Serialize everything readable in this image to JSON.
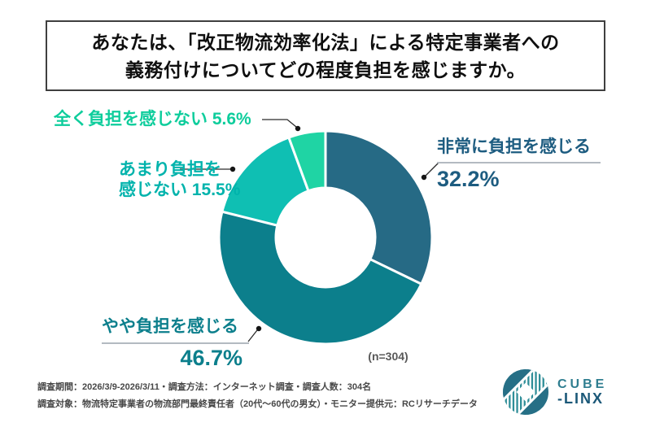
{
  "title": {
    "line1": "あなたは、「改正物流効率化法」による特定事業者への",
    "line2": "義務付けについてどの程度負担を感じますか。"
  },
  "chart_data": {
    "type": "pie",
    "variant": "donut",
    "title": "あなたは、「改正物流効率化法」による特定事業者への義務付けについてどの程度負担を感じますか。",
    "start_angle_deg": 0,
    "direction": "clockwise",
    "sample_label": "(n=304)",
    "sample_size": 304,
    "separator_color": "#ffffff",
    "segments": [
      {
        "label": "非常に負担を感じる",
        "value": 32.2,
        "display": "32.2%",
        "slice_color": "#266a85",
        "label_color": "#1d5c80"
      },
      {
        "label": "やや負担を感じる",
        "value": 46.7,
        "display": "46.7%",
        "slice_color": "#0c7f8c",
        "label_color": "#0c7f8c"
      },
      {
        "label": "あまり負担を感じない",
        "value": 15.5,
        "display": "15.5%",
        "slice_color": "#0fbfb3",
        "label_color": "#00b3ac"
      },
      {
        "label": "全く負担を感じない",
        "value": 5.6,
        "display": "5.6%",
        "slice_color": "#1fd4a4",
        "label_color": "#0ecd9c"
      }
    ]
  },
  "callouts": {
    "very": {
      "line1": "非常に負担を感じる",
      "pct": "32.2%"
    },
    "somewhat": {
      "line1": "やや負担を感じる",
      "pct": "46.7%"
    },
    "not_much": {
      "line1": "あまり負担を",
      "line2": "感じない  15.5%"
    },
    "none": {
      "line1": "全く負担を感じない  5.6%"
    }
  },
  "footer": {
    "line1": "調査期間：2026/3/9-2026/3/11・調査方法：インターネット調査・調査人数：304名",
    "line2": "調査対象：物流特定事業者の物流部門最終責任者（20代～60代の男女）・モニター提供元：RCリサーチデータ"
  },
  "logo": {
    "word1": "CUBE",
    "separator": "-",
    "word2": "LINX",
    "word1_color": "#2f7e90",
    "word2_color": "#1b5878",
    "icon_stripe_color": "#2f8e98",
    "icon_solid_color": "#266f86"
  }
}
